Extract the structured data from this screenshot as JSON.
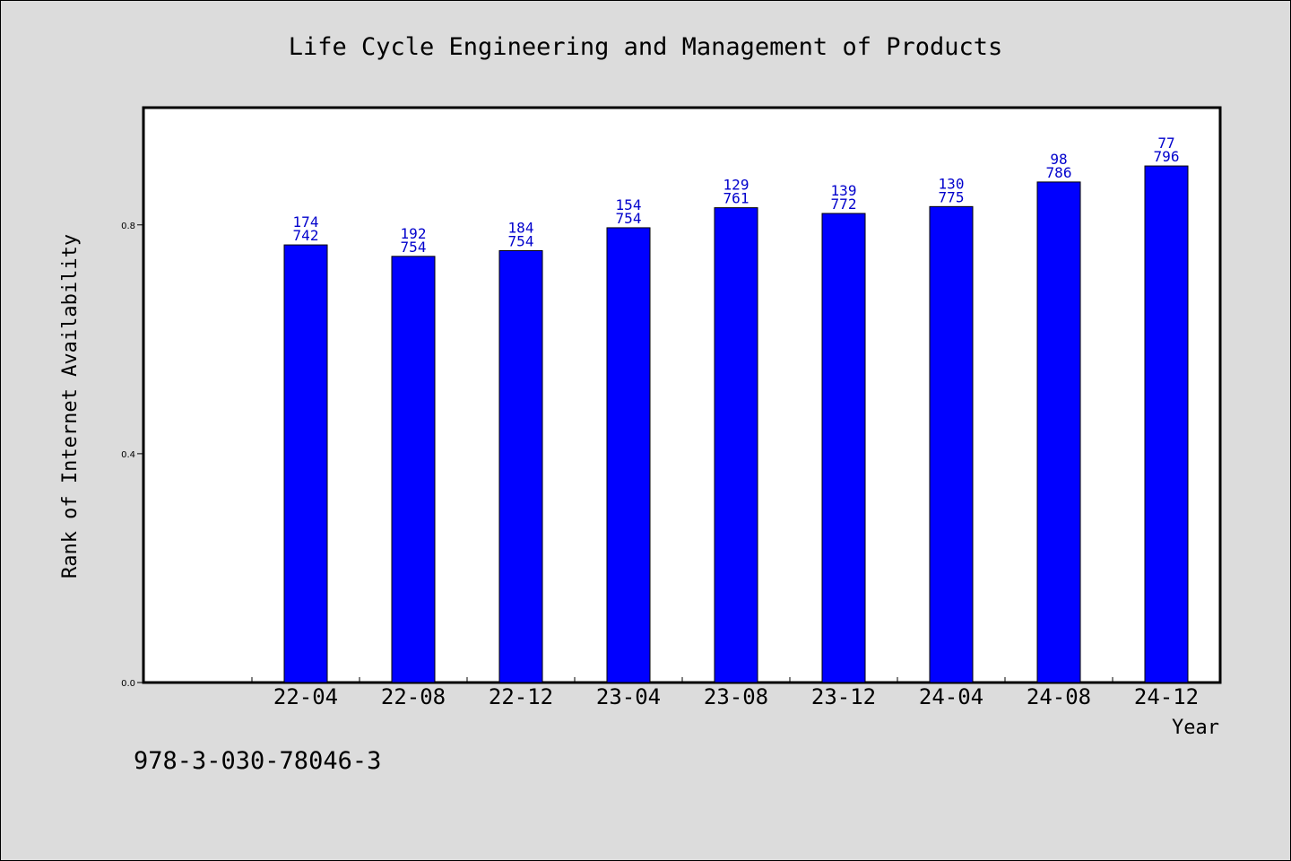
{
  "chart_data": {
    "type": "bar",
    "title": "Life Cycle Engineering and Management of Products",
    "xlabel": "Year",
    "ylabel": "Rank of Internet Availability",
    "categories": [
      "22-04",
      "22-08",
      "22-12",
      "23-04",
      "23-08",
      "23-12",
      "24-04",
      "24-08",
      "24-12"
    ],
    "values": [
      0.765,
      0.745,
      0.755,
      0.795,
      0.83,
      0.82,
      0.832,
      0.875,
      0.903
    ],
    "bar_labels": [
      [
        "174",
        "742"
      ],
      [
        "192",
        "754"
      ],
      [
        "184",
        "754"
      ],
      [
        "154",
        "754"
      ],
      [
        "129",
        "761"
      ],
      [
        "139",
        "772"
      ],
      [
        "130",
        "775"
      ],
      [
        "98",
        "786"
      ],
      [
        "77",
        "796"
      ]
    ],
    "yticks": [
      "0.0",
      "0.4",
      "0.8"
    ],
    "ylim": [
      0,
      1.005
    ],
    "grid": false,
    "colors": {
      "bar": "#0000ff",
      "bar_edge": "#000000",
      "label": "#0000cc",
      "background": "#dcdcdc",
      "plot_bg": "#ffffff"
    }
  },
  "footer": "978-3-030-78046-3"
}
